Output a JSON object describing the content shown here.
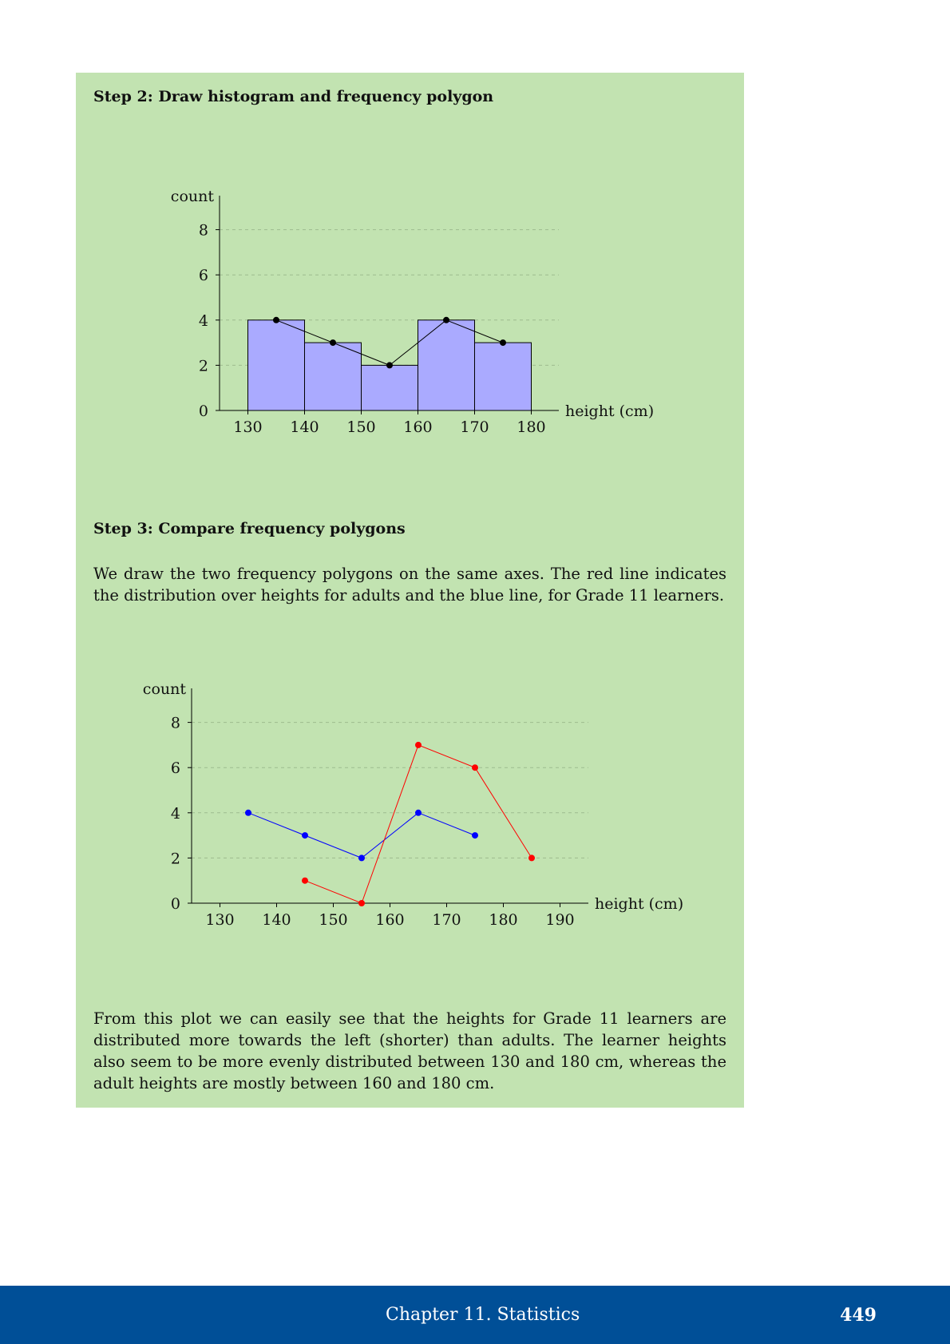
{
  "step2": {
    "heading": "Step 2: Draw histogram and frequency polygon"
  },
  "step3": {
    "heading": "Step 3: Compare frequency polygons",
    "intro": "We draw the two frequency polygons on the same axes.  The red line indicates the distribution over heights for adults and the blue line, for Grade 11 learners."
  },
  "conclusion": "From this plot we can easily see that the heights for Grade 11 learners are distributed more towards the left (shorter) than adults.  The learner heights also seem to be more evenly distributed between 130 and 180 cm, whereas the adult heights are mostly between 160 and 180 cm.",
  "footer": {
    "chapter": "Chapter 11.   Statistics",
    "page": "449"
  },
  "chart_data": [
    {
      "type": "bar",
      "xlabel": "height (cm)",
      "ylabel": "count",
      "x_ticks": [
        130,
        140,
        150,
        160,
        170,
        180
      ],
      "y_ticks": [
        0,
        2,
        4,
        6,
        8
      ],
      "ylim": [
        0,
        9
      ],
      "xlim": [
        125,
        185
      ],
      "grid": "horizontal dashed",
      "bins": [
        [
          130,
          140
        ],
        [
          140,
          150
        ],
        [
          150,
          160
        ],
        [
          160,
          170
        ],
        [
          170,
          180
        ]
      ],
      "values": [
        4,
        3,
        2,
        4,
        3
      ],
      "bar_color": "#aaaaff",
      "polygon": {
        "x": [
          135,
          145,
          155,
          165,
          175
        ],
        "y": [
          4,
          3,
          2,
          4,
          3
        ],
        "color": "#000000"
      }
    },
    {
      "type": "line",
      "xlabel": "height (cm)",
      "ylabel": "count",
      "x_ticks": [
        130,
        140,
        150,
        160,
        170,
        180,
        190
      ],
      "y_ticks": [
        0,
        2,
        4,
        6,
        8
      ],
      "ylim": [
        0,
        9
      ],
      "xlim": [
        125,
        195
      ],
      "grid": "horizontal dashed",
      "series": [
        {
          "x": [
            135,
            145,
            155,
            165,
            175
          ],
          "y": [
            4,
            3,
            2,
            4,
            3
          ],
          "color": "#0000ff"
        },
        {
          "x": [
            145,
            155,
            165,
            175,
            185
          ],
          "y": [
            1,
            0,
            7,
            6,
            2
          ],
          "color": "#ff0000"
        }
      ]
    }
  ]
}
